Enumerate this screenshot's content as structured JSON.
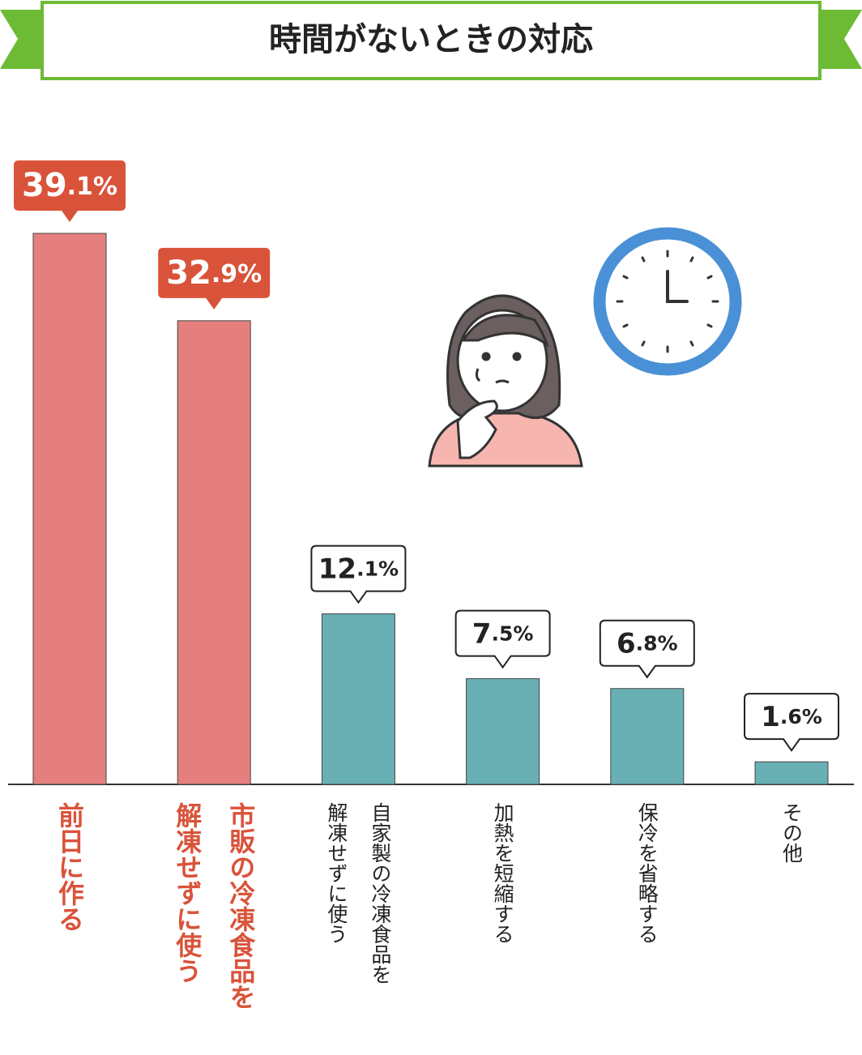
{
  "chart_data": {
    "type": "bar",
    "title": "時間がないときの対応",
    "categories": [
      [
        "前日に作る"
      ],
      [
        "市販の冷凍食品を",
        "解凍せずに使う"
      ],
      [
        "自家製の冷凍食品を",
        "解凍せずに使う"
      ],
      [
        "加熱を短縮する"
      ],
      [
        "保冷を省略する"
      ],
      [
        "その他"
      ]
    ],
    "values": [
      39.1,
      32.9,
      12.1,
      7.5,
      6.8,
      1.6
    ],
    "value_labels": [
      "39.1%",
      "32.9%",
      "12.1%",
      "7.5%",
      "6.8%",
      "1.6%"
    ],
    "colors": [
      "#e57f7e",
      "#e57f7e",
      "#68b0b3",
      "#68b0b3",
      "#68b0b3",
      "#68b0b3"
    ],
    "label_box_colors": [
      "#d9533a",
      "#d9533a",
      "#ffffff",
      "#ffffff",
      "#ffffff",
      "#ffffff"
    ],
    "label_text_colors": [
      "#ffffff",
      "#ffffff",
      "#222222",
      "#222222",
      "#222222",
      "#222222"
    ],
    "category_colors": [
      "#d9533a",
      "#d9533a",
      "#222222",
      "#222222",
      "#222222",
      "#222222"
    ]
  }
}
